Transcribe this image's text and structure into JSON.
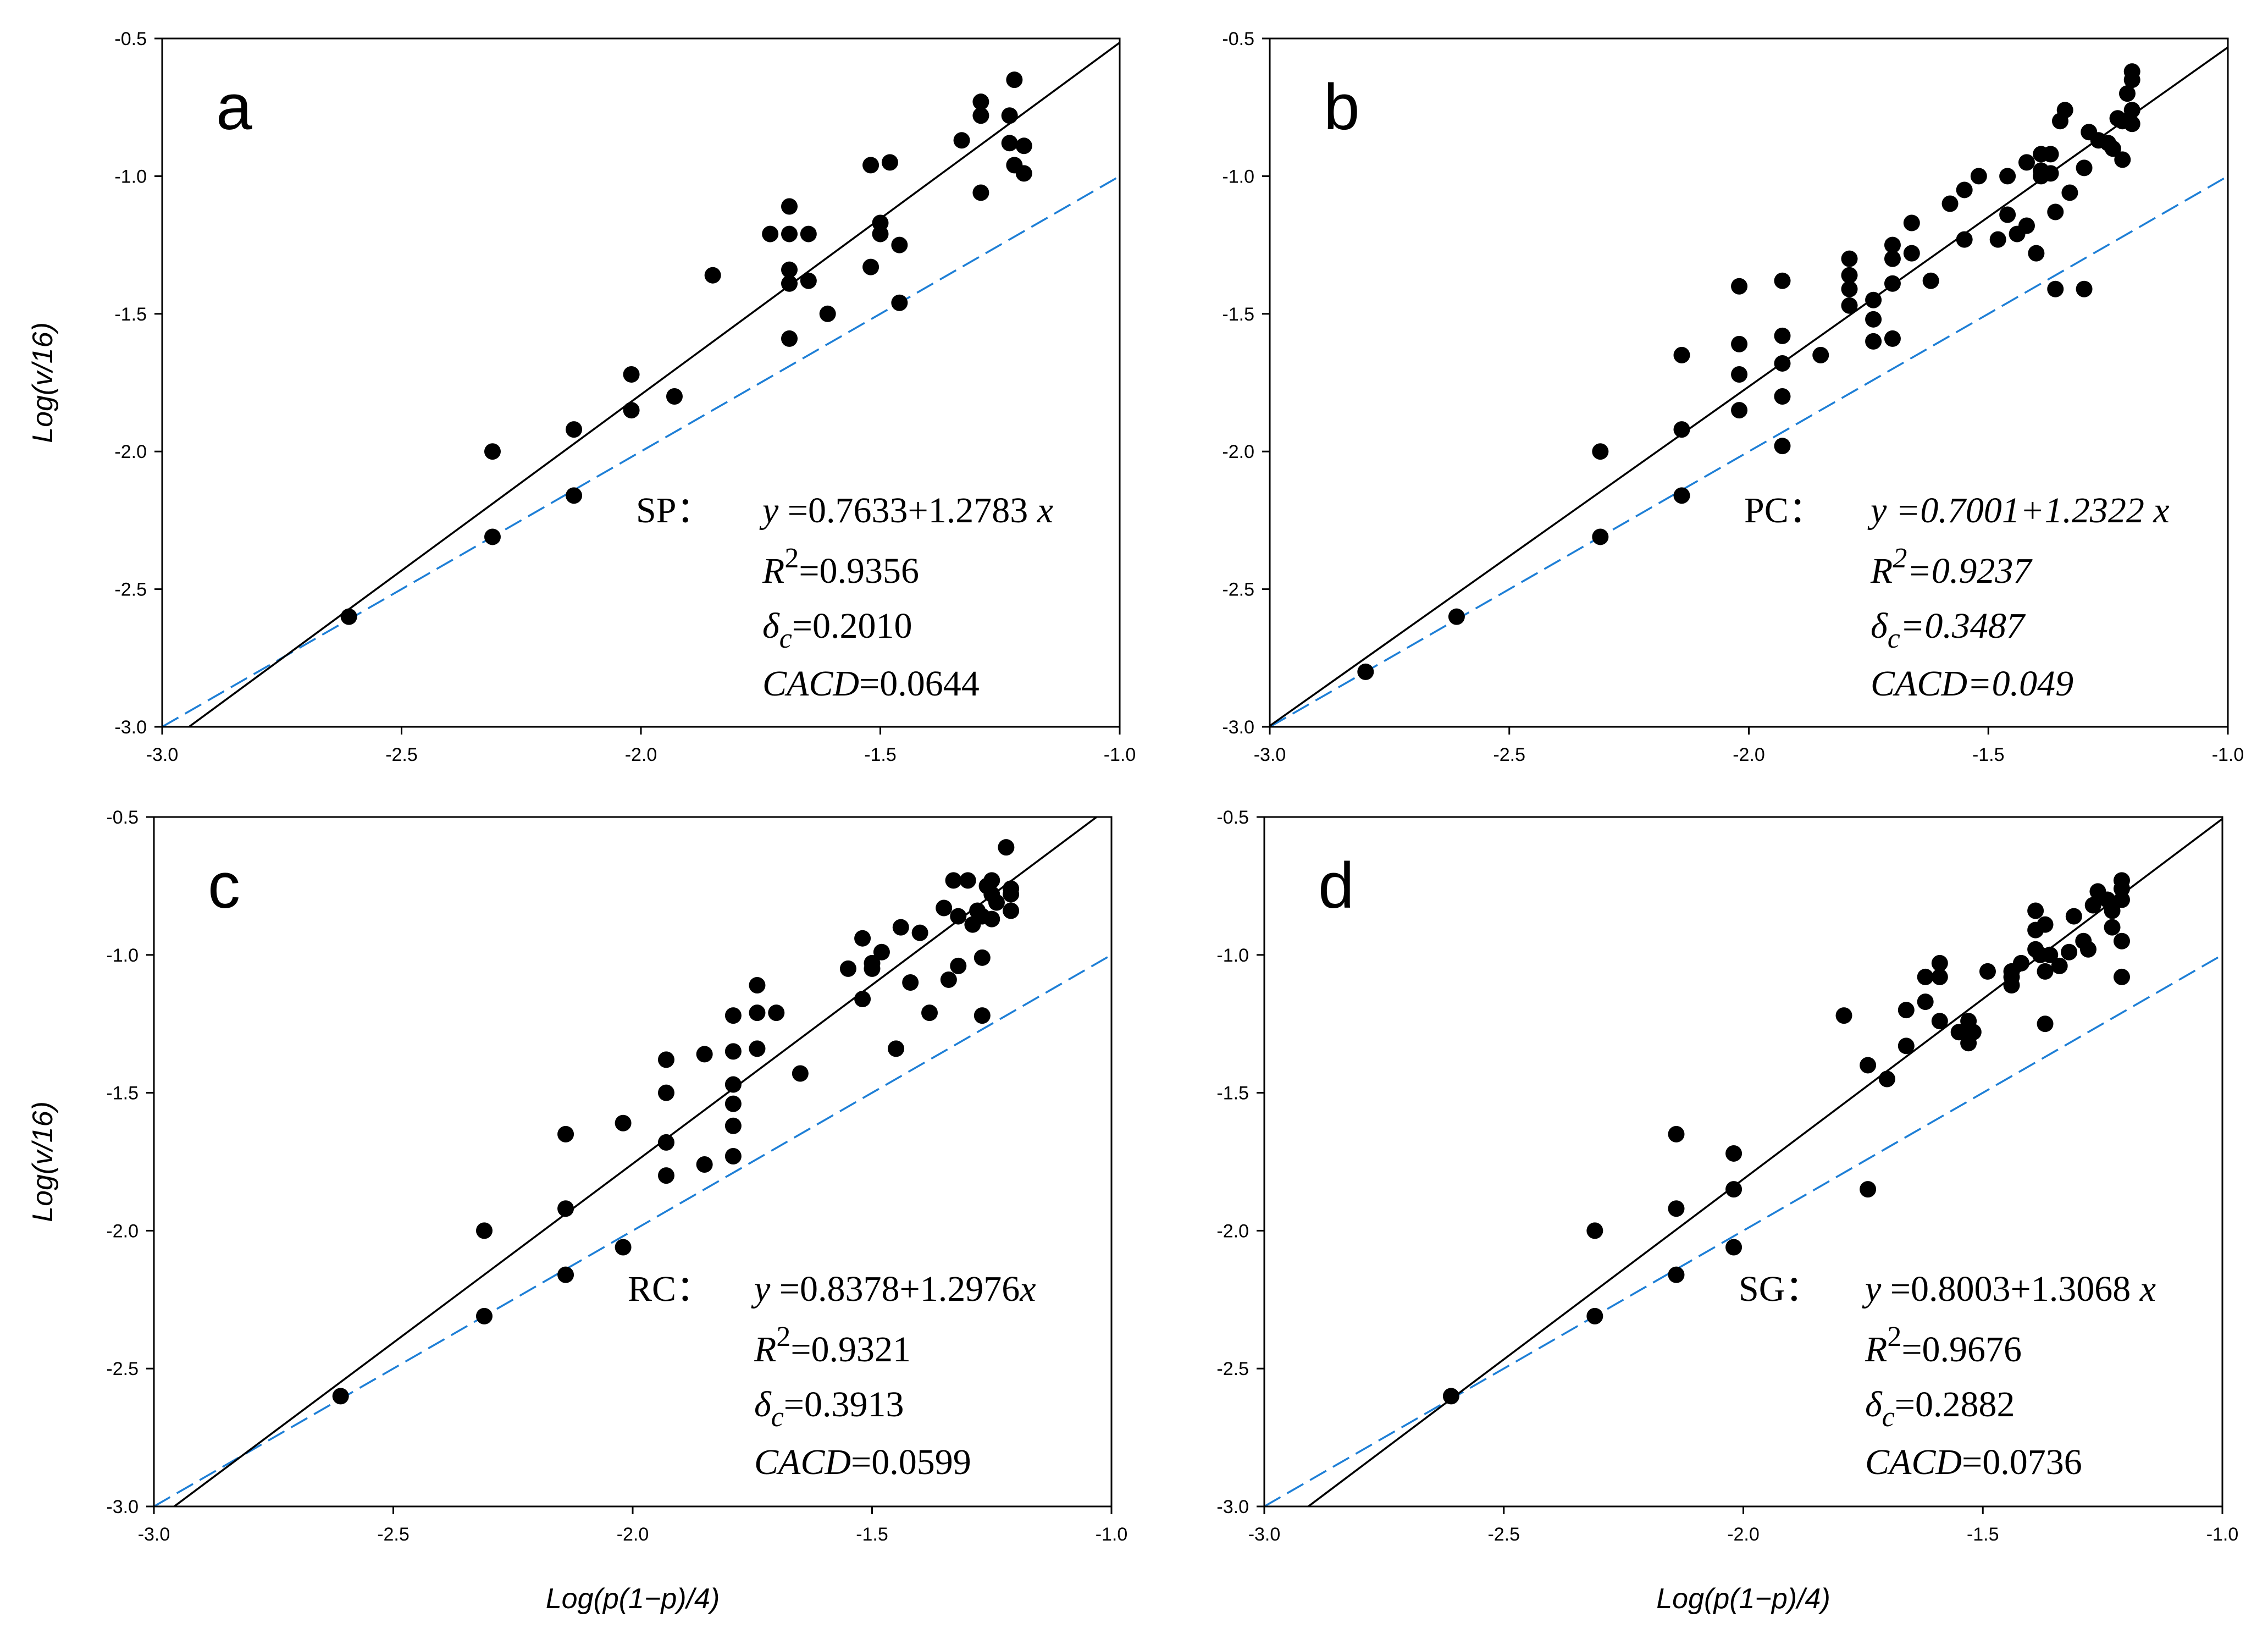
{
  "chart_data": [
    {
      "type": "scatter",
      "panel": "a",
      "xlim": [
        -3.0,
        -1.0
      ],
      "ylim": [
        -3.0,
        -0.5
      ],
      "xticks": [
        "-3.0",
        "-2.5",
        "-2.0",
        "-1.5",
        "-1.0"
      ],
      "yticks": [
        "-0.5",
        "-1.0",
        "-1.5",
        "-2.0",
        "-2.5",
        "-3.0"
      ],
      "xlabel": "",
      "ylabel": "Log(v/16)",
      "ylabel_parts": [
        "Log(",
        "v",
        "/16)"
      ],
      "grid": false,
      "annotation": {
        "label": "SP：",
        "equation_parts": [
          "y",
          " =0.7633+1.2783 ",
          "x"
        ],
        "r2_parts": [
          "R",
          "2",
          "=0.9356"
        ],
        "delta_parts": [
          "δ",
          "c",
          "=0.2010"
        ],
        "cacd_parts": [
          "CACD",
          "=0.0644"
        ],
        "italic": false
      },
      "fit_line": {
        "intercept": 0.7633,
        "slope": 1.2783,
        "color": "#000000"
      },
      "reference_line": {
        "intercept": 0.0,
        "slope": 1.0,
        "color": "#1E7FD6"
      },
      "points": [
        [
          -2.61,
          -2.6
        ],
        [
          -2.31,
          -2.31
        ],
        [
          -2.31,
          -2.0
        ],
        [
          -2.14,
          -2.16
        ],
        [
          -2.14,
          -1.92
        ],
        [
          -2.02,
          -1.85
        ],
        [
          -2.02,
          -1.72
        ],
        [
          -1.93,
          -1.8
        ],
        [
          -1.85,
          -1.36
        ],
        [
          -1.73,
          -1.21
        ],
        [
          -1.69,
          -1.59
        ],
        [
          -1.69,
          -1.39
        ],
        [
          -1.69,
          -1.34
        ],
        [
          -1.69,
          -1.21
        ],
        [
          -1.69,
          -1.11
        ],
        [
          -1.65,
          -1.21
        ],
        [
          -1.65,
          -1.38
        ],
        [
          -1.61,
          -1.5
        ],
        [
          -1.52,
          -1.33
        ],
        [
          -1.52,
          -0.96
        ],
        [
          -1.5,
          -1.21
        ],
        [
          -1.5,
          -1.17
        ],
        [
          -1.48,
          -0.95
        ],
        [
          -1.46,
          -1.25
        ],
        [
          -1.46,
          -1.46
        ],
        [
          -1.33,
          -0.87
        ],
        [
          -1.29,
          -0.78
        ],
        [
          -1.29,
          -0.73
        ],
        [
          -1.29,
          -1.06
        ],
        [
          -1.23,
          -0.78
        ],
        [
          -1.23,
          -0.88
        ],
        [
          -1.22,
          -0.65
        ],
        [
          -1.22,
          -0.96
        ],
        [
          -1.2,
          -0.99
        ],
        [
          -1.2,
          -0.89
        ]
      ]
    },
    {
      "type": "scatter",
      "panel": "b",
      "xlim": [
        -3.0,
        -1.0
      ],
      "ylim": [
        -3.0,
        -0.5
      ],
      "xticks": [
        "-3.0",
        "-2.5",
        "-2.0",
        "-1.5",
        "-1.0"
      ],
      "yticks": [
        "-0.5",
        "-1.0",
        "-1.5",
        "-2.0",
        "-2.5",
        "-3.0"
      ],
      "xlabel": "",
      "ylabel": "",
      "grid": false,
      "annotation": {
        "label": "PC：",
        "equation_parts": [
          "y",
          " =0.7001+1.2322 ",
          "x"
        ],
        "r2_parts": [
          "R",
          "2",
          "=0.9237"
        ],
        "delta_parts": [
          "δ",
          "c",
          "=0.3487"
        ],
        "cacd_parts": [
          "CACD",
          "=0.049"
        ],
        "italic": true
      },
      "fit_line": {
        "intercept": 0.7001,
        "slope": 1.2322,
        "color": "#000000"
      },
      "reference_line": {
        "intercept": 0.0,
        "slope": 1.0,
        "color": "#1E7FD6"
      },
      "points": [
        [
          -2.8,
          -2.8
        ],
        [
          -2.61,
          -2.6
        ],
        [
          -2.31,
          -2.31
        ],
        [
          -2.31,
          -2.0
        ],
        [
          -2.14,
          -2.16
        ],
        [
          -2.14,
          -1.92
        ],
        [
          -2.14,
          -1.65
        ],
        [
          -2.02,
          -1.85
        ],
        [
          -2.02,
          -1.72
        ],
        [
          -2.02,
          -1.61
        ],
        [
          -2.02,
          -1.4
        ],
        [
          -1.93,
          -1.98
        ],
        [
          -1.93,
          -1.8
        ],
        [
          -1.93,
          -1.68
        ],
        [
          -1.93,
          -1.58
        ],
        [
          -1.93,
          -1.38
        ],
        [
          -1.85,
          -1.65
        ],
        [
          -1.79,
          -1.47
        ],
        [
          -1.79,
          -1.41
        ],
        [
          -1.79,
          -1.36
        ],
        [
          -1.79,
          -1.3
        ],
        [
          -1.74,
          -1.6
        ],
        [
          -1.74,
          -1.52
        ],
        [
          -1.74,
          -1.45
        ],
        [
          -1.7,
          -1.59
        ],
        [
          -1.7,
          -1.39
        ],
        [
          -1.7,
          -1.3
        ],
        [
          -1.7,
          -1.25
        ],
        [
          -1.66,
          -1.28
        ],
        [
          -1.66,
          -1.17
        ],
        [
          -1.62,
          -1.38
        ],
        [
          -1.58,
          -1.1
        ],
        [
          -1.55,
          -1.23
        ],
        [
          -1.55,
          -1.05
        ],
        [
          -1.52,
          -1.0
        ],
        [
          -1.48,
          -1.23
        ],
        [
          -1.46,
          -1.14
        ],
        [
          -1.46,
          -1.0
        ],
        [
          -1.44,
          -1.21
        ],
        [
          -1.42,
          -1.18
        ],
        [
          -1.42,
          -0.95
        ],
        [
          -1.4,
          -1.28
        ],
        [
          -1.39,
          -0.92
        ],
        [
          -1.39,
          -0.98
        ],
        [
          -1.39,
          -1.0
        ],
        [
          -1.37,
          -0.92
        ],
        [
          -1.37,
          -0.99
        ],
        [
          -1.36,
          -1.13
        ],
        [
          -1.36,
          -1.41
        ],
        [
          -1.35,
          -0.8
        ],
        [
          -1.34,
          -0.76
        ],
        [
          -1.33,
          -1.06
        ],
        [
          -1.3,
          -0.97
        ],
        [
          -1.3,
          -1.41
        ],
        [
          -1.29,
          -0.84
        ],
        [
          -1.27,
          -0.87
        ],
        [
          -1.25,
          -0.88
        ],
        [
          -1.24,
          -0.9
        ],
        [
          -1.23,
          -0.79
        ],
        [
          -1.22,
          -0.94
        ],
        [
          -1.22,
          -0.8
        ],
        [
          -1.21,
          -0.7
        ],
        [
          -1.2,
          -0.62
        ],
        [
          -1.2,
          -0.65
        ],
        [
          -1.2,
          -0.76
        ],
        [
          -1.2,
          -0.81
        ]
      ]
    },
    {
      "type": "scatter",
      "panel": "c",
      "xlim": [
        -3.0,
        -1.0
      ],
      "ylim": [
        -3.0,
        -0.5
      ],
      "xticks": [
        "-3.0",
        "-2.5",
        "-2.0",
        "-1.5",
        "-1.0"
      ],
      "yticks": [
        "-0.5",
        "-1.0",
        "-1.5",
        "-2.0",
        "-2.5",
        "-3.0"
      ],
      "xlabel": "Log(p(1−p)/4)",
      "xlabel_parts": [
        "Log(",
        "p",
        "(1−",
        "p",
        ")/4)"
      ],
      "ylabel": "Log(v/16)",
      "ylabel_parts": [
        "Log(",
        "v",
        "/16)"
      ],
      "grid": false,
      "annotation": {
        "label": "RC：",
        "equation_parts": [
          "y",
          " =0.8378+1.2976",
          "x"
        ],
        "r2_parts": [
          "R",
          "2",
          "=0.9321"
        ],
        "delta_parts": [
          "δ",
          "c",
          "=0.3913"
        ],
        "cacd_parts": [
          "CACD",
          "=0.0599"
        ],
        "italic": false
      },
      "fit_line": {
        "intercept": 0.8378,
        "slope": 1.2976,
        "color": "#000000"
      },
      "reference_line": {
        "intercept": 0.0,
        "slope": 1.0,
        "color": "#1E7FD6"
      },
      "points": [
        [
          -2.61,
          -2.6
        ],
        [
          -2.31,
          -2.31
        ],
        [
          -2.31,
          -2.0
        ],
        [
          -2.14,
          -2.16
        ],
        [
          -2.14,
          -1.92
        ],
        [
          -2.14,
          -1.65
        ],
        [
          -2.02,
          -2.06
        ],
        [
          -2.02,
          -1.61
        ],
        [
          -1.93,
          -1.8
        ],
        [
          -1.93,
          -1.68
        ],
        [
          -1.93,
          -1.5
        ],
        [
          -1.93,
          -1.38
        ],
        [
          -1.85,
          -1.76
        ],
        [
          -1.85,
          -1.36
        ],
        [
          -1.79,
          -1.73
        ],
        [
          -1.79,
          -1.62
        ],
        [
          -1.79,
          -1.54
        ],
        [
          -1.79,
          -1.47
        ],
        [
          -1.79,
          -1.35
        ],
        [
          -1.79,
          -1.22
        ],
        [
          -1.74,
          -1.34
        ],
        [
          -1.74,
          -1.21
        ],
        [
          -1.74,
          -1.11
        ],
        [
          -1.7,
          -1.21
        ],
        [
          -1.65,
          -1.43
        ],
        [
          -1.55,
          -1.05
        ],
        [
          -1.52,
          -1.16
        ],
        [
          -1.52,
          -0.94
        ],
        [
          -1.5,
          -1.05
        ],
        [
          -1.5,
          -1.03
        ],
        [
          -1.48,
          -0.99
        ],
        [
          -1.45,
          -1.34
        ],
        [
          -1.44,
          -0.9
        ],
        [
          -1.42,
          -1.1
        ],
        [
          -1.4,
          -0.92
        ],
        [
          -1.38,
          -1.21
        ],
        [
          -1.35,
          -0.83
        ],
        [
          -1.34,
          -1.09
        ],
        [
          -1.33,
          -0.73
        ],
        [
          -1.32,
          -1.04
        ],
        [
          -1.32,
          -0.86
        ],
        [
          -1.3,
          -0.73
        ],
        [
          -1.29,
          -0.89
        ],
        [
          -1.28,
          -0.84
        ],
        [
          -1.27,
          -0.86
        ],
        [
          -1.27,
          -1.01
        ],
        [
          -1.27,
          -1.22
        ],
        [
          -1.26,
          -0.75
        ],
        [
          -1.25,
          -0.73
        ],
        [
          -1.25,
          -0.78
        ],
        [
          -1.25,
          -0.87
        ],
        [
          -1.24,
          -0.81
        ],
        [
          -1.22,
          -0.61
        ],
        [
          -1.21,
          -0.76
        ],
        [
          -1.21,
          -0.78
        ],
        [
          -1.21,
          -0.84
        ]
      ]
    },
    {
      "type": "scatter",
      "panel": "d",
      "xlim": [
        -3.0,
        -1.0
      ],
      "ylim": [
        -3.0,
        -0.5
      ],
      "xticks": [
        "-3.0",
        "-2.5",
        "-2.0",
        "-1.5",
        "-1.0"
      ],
      "yticks": [
        "-0.5",
        "-1.0",
        "-1.5",
        "-2.0",
        "-2.5",
        "-3.0"
      ],
      "xlabel": "Log(p(1−p)/4)",
      "xlabel_parts": [
        "Log(",
        "p",
        "(1−",
        "p",
        ")/4)"
      ],
      "ylabel": "",
      "grid": false,
      "annotation": {
        "label": "SG：",
        "equation_parts": [
          "y",
          " =0.8003+1.3068 ",
          "x"
        ],
        "r2_parts": [
          "R",
          "2",
          "=0.9676"
        ],
        "delta_parts": [
          "δ",
          "c",
          "=0.2882"
        ],
        "cacd_parts": [
          "CACD",
          "=0.0736"
        ],
        "italic": false
      },
      "fit_line": {
        "intercept": 0.8003,
        "slope": 1.3068,
        "color": "#000000"
      },
      "reference_line": {
        "intercept": 0.0,
        "slope": 1.0,
        "color": "#1E7FD6"
      },
      "points": [
        [
          -2.61,
          -2.6
        ],
        [
          -2.31,
          -2.31
        ],
        [
          -2.31,
          -2.0
        ],
        [
          -2.14,
          -2.16
        ],
        [
          -2.14,
          -1.92
        ],
        [
          -2.14,
          -1.65
        ],
        [
          -2.02,
          -2.06
        ],
        [
          -2.02,
          -1.85
        ],
        [
          -2.02,
          -1.72
        ],
        [
          -1.79,
          -1.22
        ],
        [
          -1.74,
          -1.85
        ],
        [
          -1.74,
          -1.4
        ],
        [
          -1.7,
          -1.45
        ],
        [
          -1.66,
          -1.33
        ],
        [
          -1.66,
          -1.2
        ],
        [
          -1.62,
          -1.17
        ],
        [
          -1.62,
          -1.08
        ],
        [
          -1.59,
          -1.03
        ],
        [
          -1.59,
          -1.08
        ],
        [
          -1.59,
          -1.24
        ],
        [
          -1.55,
          -1.28
        ],
        [
          -1.53,
          -1.24
        ],
        [
          -1.53,
          -1.32
        ],
        [
          -1.52,
          -1.28
        ],
        [
          -1.49,
          -1.06
        ],
        [
          -1.44,
          -1.06
        ],
        [
          -1.44,
          -1.08
        ],
        [
          -1.44,
          -1.11
        ],
        [
          -1.42,
          -1.03
        ],
        [
          -1.39,
          -0.84
        ],
        [
          -1.39,
          -0.98
        ],
        [
          -1.39,
          -0.91
        ],
        [
          -1.38,
          -1.0
        ],
        [
          -1.37,
          -1.25
        ],
        [
          -1.37,
          -1.06
        ],
        [
          -1.37,
          -0.89
        ],
        [
          -1.36,
          -1.0
        ],
        [
          -1.34,
          -1.04
        ],
        [
          -1.32,
          -0.99
        ],
        [
          -1.31,
          -0.86
        ],
        [
          -1.29,
          -0.95
        ],
        [
          -1.28,
          -0.98
        ],
        [
          -1.27,
          -0.82
        ],
        [
          -1.26,
          -0.77
        ],
        [
          -1.24,
          -0.8
        ],
        [
          -1.23,
          -0.84
        ],
        [
          -1.23,
          -0.9
        ],
        [
          -1.21,
          -0.73
        ],
        [
          -1.21,
          -0.76
        ],
        [
          -1.21,
          -0.8
        ],
        [
          -1.21,
          -0.95
        ],
        [
          -1.21,
          -1.08
        ]
      ]
    }
  ]
}
